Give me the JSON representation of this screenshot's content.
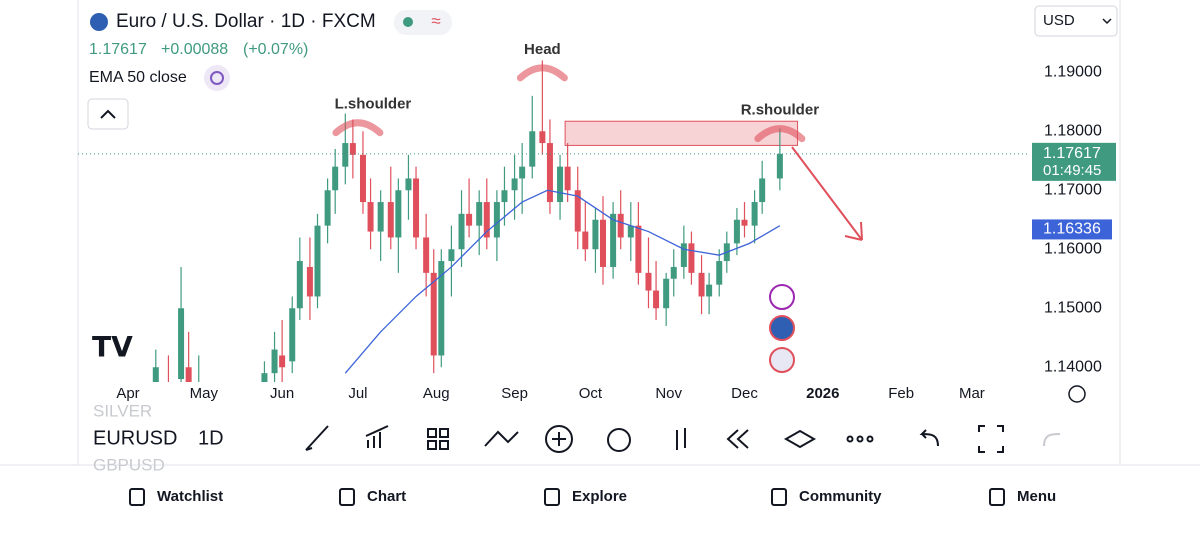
{
  "header": {
    "title": "Euro / U.S. Dollar · 1D · FXCM",
    "price": "1.17617",
    "change": "+0.00088",
    "change_pct": "(+0.07%)",
    "indicator": "EMA 50 close",
    "currency": "USD"
  },
  "chart_data": {
    "type": "candlestick",
    "up_color": "#3f9a80",
    "down_color": "#e0505c",
    "ema_color": "#3d63d8",
    "xlim": [
      -19,
      357
    ],
    "ylim": [
      1.1375,
      1.2014
    ],
    "xticks": [
      {
        "value": 0,
        "label": "Apr"
      },
      {
        "value": 30,
        "label": "May"
      },
      {
        "value": 61,
        "label": "Jun"
      },
      {
        "value": 91,
        "label": "Jul"
      },
      {
        "value": 122,
        "label": "Aug"
      },
      {
        "value": 153,
        "label": "Sep"
      },
      {
        "value": 183,
        "label": "Oct"
      },
      {
        "value": 214,
        "label": "Nov"
      },
      {
        "value": 244,
        "label": "Dec"
      },
      {
        "value": 275,
        "label": "2026"
      },
      {
        "value": 306,
        "label": "Feb"
      },
      {
        "value": 334,
        "label": "Mar"
      }
    ],
    "yticks": [
      {
        "value": 1.14,
        "label": "1.14000"
      },
      {
        "value": 1.15,
        "label": "1.15000"
      },
      {
        "value": 1.16,
        "label": "1.16000"
      },
      {
        "value": 1.17,
        "label": "1.17000"
      },
      {
        "value": 1.18,
        "label": "1.18000"
      },
      {
        "value": 1.19,
        "label": "1.19000"
      }
    ],
    "x": [
      11,
      16,
      21,
      24,
      28,
      54,
      58,
      61,
      65,
      68,
      72,
      75,
      79,
      82,
      86,
      89,
      93,
      96,
      100,
      104,
      107,
      111,
      114,
      118,
      121,
      124,
      128,
      132,
      135,
      139,
      142,
      146,
      149,
      153,
      156,
      160,
      164,
      167,
      171,
      174,
      178,
      181,
      185,
      188,
      192,
      195,
      199,
      202,
      206,
      209,
      213,
      216,
      220,
      223,
      227,
      230,
      234,
      237,
      241,
      244,
      248,
      251,
      258
    ],
    "ohlc": [
      [
        1.137,
        1.143,
        1.125,
        1.14
      ],
      [
        1.136,
        1.142,
        1.128,
        1.133
      ],
      [
        1.138,
        1.157,
        1.132,
        1.15
      ],
      [
        1.14,
        1.146,
        1.13,
        1.132
      ],
      [
        1.132,
        1.142,
        1.125,
        1.135
      ],
      [
        1.135,
        1.141,
        1.13,
        1.139
      ],
      [
        1.139,
        1.146,
        1.136,
        1.143
      ],
      [
        1.142,
        1.148,
        1.137,
        1.14
      ],
      [
        1.141,
        1.152,
        1.139,
        1.15
      ],
      [
        1.15,
        1.162,
        1.148,
        1.158
      ],
      [
        1.157,
        1.162,
        1.148,
        1.152
      ],
      [
        1.152,
        1.166,
        1.15,
        1.164
      ],
      [
        1.164,
        1.172,
        1.161,
        1.17
      ],
      [
        1.17,
        1.177,
        1.166,
        1.174
      ],
      [
        1.174,
        1.183,
        1.171,
        1.178
      ],
      [
        1.178,
        1.182,
        1.172,
        1.176
      ],
      [
        1.176,
        1.18,
        1.166,
        1.168
      ],
      [
        1.168,
        1.172,
        1.16,
        1.163
      ],
      [
        1.163,
        1.17,
        1.158,
        1.168
      ],
      [
        1.168,
        1.174,
        1.16,
        1.162
      ],
      [
        1.162,
        1.172,
        1.156,
        1.17
      ],
      [
        1.17,
        1.176,
        1.165,
        1.172
      ],
      [
        1.172,
        1.174,
        1.16,
        1.162
      ],
      [
        1.162,
        1.166,
        1.152,
        1.156
      ],
      [
        1.156,
        1.16,
        1.139,
        1.142
      ],
      [
        1.142,
        1.16,
        1.14,
        1.158
      ],
      [
        1.158,
        1.164,
        1.152,
        1.16
      ],
      [
        1.16,
        1.17,
        1.157,
        1.166
      ],
      [
        1.166,
        1.172,
        1.162,
        1.164
      ],
      [
        1.164,
        1.17,
        1.159,
        1.168
      ],
      [
        1.168,
        1.172,
        1.16,
        1.162
      ],
      [
        1.162,
        1.17,
        1.158,
        1.168
      ],
      [
        1.168,
        1.174,
        1.164,
        1.17
      ],
      [
        1.17,
        1.176,
        1.165,
        1.172
      ],
      [
        1.172,
        1.178,
        1.166,
        1.174
      ],
      [
        1.174,
        1.186,
        1.172,
        1.18
      ],
      [
        1.18,
        1.192,
        1.176,
        1.178
      ],
      [
        1.178,
        1.182,
        1.166,
        1.168
      ],
      [
        1.168,
        1.176,
        1.165,
        1.174
      ],
      [
        1.174,
        1.178,
        1.168,
        1.17
      ],
      [
        1.17,
        1.174,
        1.16,
        1.163
      ],
      [
        1.163,
        1.168,
        1.158,
        1.16
      ],
      [
        1.16,
        1.167,
        1.156,
        1.165
      ],
      [
        1.165,
        1.169,
        1.154,
        1.157
      ],
      [
        1.157,
        1.168,
        1.155,
        1.166
      ],
      [
        1.166,
        1.17,
        1.16,
        1.162
      ],
      [
        1.162,
        1.168,
        1.158,
        1.164
      ],
      [
        1.164,
        1.168,
        1.154,
        1.156
      ],
      [
        1.156,
        1.162,
        1.15,
        1.153
      ],
      [
        1.153,
        1.158,
        1.148,
        1.15
      ],
      [
        1.15,
        1.156,
        1.147,
        1.155
      ],
      [
        1.155,
        1.16,
        1.152,
        1.157
      ],
      [
        1.157,
        1.164,
        1.155,
        1.161
      ],
      [
        1.161,
        1.163,
        1.154,
        1.156
      ],
      [
        1.156,
        1.159,
        1.149,
        1.152
      ],
      [
        1.152,
        1.156,
        1.149,
        1.154
      ],
      [
        1.154,
        1.16,
        1.152,
        1.158
      ],
      [
        1.158,
        1.163,
        1.156,
        1.161
      ],
      [
        1.161,
        1.167,
        1.159,
        1.165
      ],
      [
        1.165,
        1.168,
        1.162,
        1.164
      ],
      [
        1.164,
        1.17,
        1.161,
        1.168
      ],
      [
        1.168,
        1.175,
        1.166,
        1.172
      ],
      [
        1.172,
        1.1805,
        1.17,
        1.17617
      ]
    ],
    "ema": {
      "x": [
        86,
        100,
        114,
        128,
        142,
        156,
        166,
        178,
        192,
        206,
        220,
        234,
        246,
        258
      ],
      "values": [
        1.139,
        1.146,
        1.152,
        1.157,
        1.163,
        1.168,
        1.17,
        1.169,
        1.165,
        1.163,
        1.16,
        1.159,
        1.161,
        1.164
      ]
    },
    "last_price": 1.17617,
    "countdown": "01:49:45",
    "ema_last": 1.16336,
    "resistance": {
      "x": [
        173,
        265
      ],
      "y": [
        1.1776,
        1.1817
      ]
    },
    "annotations": [
      {
        "text": "L.shoulder",
        "x": 91,
        "y": 1.1845
      },
      {
        "text": "Head",
        "x": 164,
        "y": 1.1938
      },
      {
        "text": "R.shoulder",
        "x": 258,
        "y": 1.1835
      }
    ]
  },
  "toolbar": {
    "symbol": "EURUSD",
    "interval": "1D",
    "above": "SILVER",
    "below": "GBPUSD"
  },
  "nav": [
    "Watchlist",
    "Chart",
    "Explore",
    "Community",
    "Menu"
  ]
}
